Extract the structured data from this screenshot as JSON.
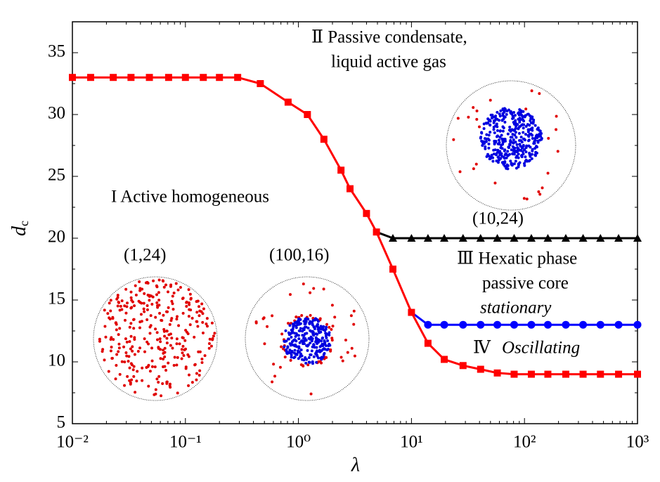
{
  "chart_data": {
    "type": "line",
    "x_label": "λ",
    "y_label": "d",
    "y_label_subscript": "c",
    "xscale": "log",
    "xlim": [
      0.01,
      1000
    ],
    "ylim": [
      5,
      37.5
    ],
    "xticks": [
      {
        "value": 0.01,
        "label": "10⁻²"
      },
      {
        "value": 0.1,
        "label": "10⁻¹"
      },
      {
        "value": 1,
        "label": "10⁰"
      },
      {
        "value": 10,
        "label": "10¹"
      },
      {
        "value": 100,
        "label": "10²"
      },
      {
        "value": 1000,
        "label": "10³"
      }
    ],
    "yticks": [
      5,
      10,
      15,
      20,
      25,
      30,
      35
    ],
    "series": [
      {
        "color": "#ff0000",
        "marker": "square",
        "x": [
          0.01,
          0.0145,
          0.023,
          0.033,
          0.048,
          0.071,
          0.1,
          0.144,
          0.2,
          0.29,
          0.46,
          0.81,
          1.2,
          1.68,
          2.38,
          2.86,
          4.0,
          4.9,
          6.85,
          10,
          14,
          19.5,
          28.6,
          40.9,
          57.5,
          81,
          115,
          161,
          232,
          330,
          470,
          680,
          1000
        ],
        "values": [
          33,
          33,
          33,
          33,
          33,
          33,
          33,
          33,
          33,
          33,
          32.5,
          31,
          30,
          28,
          25.5,
          24,
          22,
          20.5,
          17.5,
          14,
          11.5,
          10.2,
          9.7,
          9.4,
          9.1,
          9,
          9,
          9,
          9,
          9,
          9,
          9,
          9
        ]
      },
      {
        "color": "#000000",
        "marker": "triangle",
        "x": [
          6.85,
          10,
          14,
          19.5,
          28.6,
          40.9,
          57.5,
          81,
          115,
          161,
          232,
          330,
          470,
          680,
          1000
        ],
        "values": [
          20,
          20,
          20,
          20,
          20,
          20,
          20,
          20,
          20,
          20,
          20,
          20,
          20,
          20,
          20
        ]
      },
      {
        "color": "#0000ff",
        "marker": "circle",
        "x": [
          14,
          19.5,
          28.6,
          40.9,
          57.5,
          81,
          115,
          161,
          232,
          330,
          470,
          680,
          1000
        ],
        "values": [
          13,
          13,
          13,
          13,
          13,
          13,
          13,
          13,
          13,
          13,
          13,
          13,
          13
        ]
      }
    ],
    "annotations": [
      {
        "text": "Ⅱ Passive condensate,"
      },
      {
        "text": "liquid active gas"
      },
      {
        "text": "I Active homogeneous"
      },
      {
        "text": "(10,24)"
      },
      {
        "text": "(1,24)"
      },
      {
        "text": "(100,16)"
      },
      {
        "text": "Ⅲ Hexatic phase"
      },
      {
        "text": "passive core"
      },
      {
        "text": "stationary",
        "italic": true
      },
      {
        "text": "Ⅳ"
      },
      {
        "text": "Oscillating",
        "italic": true
      }
    ]
  }
}
